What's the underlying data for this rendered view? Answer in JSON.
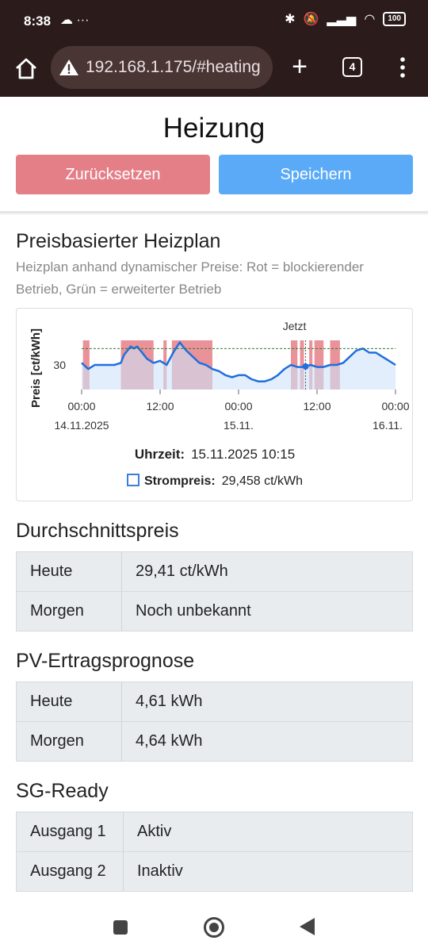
{
  "status_bar": {
    "time": "8:38",
    "left_icons": "☁ ···",
    "battery": "100"
  },
  "browser": {
    "url": "192.168.1.175/#heating",
    "tab_count": "4"
  },
  "page": {
    "title": "Heizung",
    "reset_label": "Zurücksetzen",
    "save_label": "Speichern"
  },
  "heizplan": {
    "title": "Preisbasierter Heizplan",
    "description": "Heizplan anhand dynamischer Preise: Rot = blockierender Betrieb, Grün = erweiterter Betrieb",
    "tooltip_time_label": "Uhrzeit:",
    "tooltip_time_value": "15.11.2025 10:15",
    "tooltip_series_label": "Strompreis:",
    "tooltip_series_value": "29,458 ct/kWh"
  },
  "chart_data": {
    "type": "line",
    "ylabel": "Preis [ct/kWh]",
    "y_ticks": [
      "30"
    ],
    "x_ticks": [
      {
        "time": "00:00",
        "date": "14.11.2025"
      },
      {
        "time": "12:00",
        "date": ""
      },
      {
        "time": "00:00",
        "date": "15.11."
      },
      {
        "time": "12:00",
        "date": ""
      },
      {
        "time": "00:00",
        "date": "16.11."
      }
    ],
    "now_label": "Jetzt",
    "now_hours": 34.25,
    "x_range_hours": [
      0,
      48
    ],
    "ylim": [
      24,
      36
    ],
    "reference_line": 34.0,
    "series": [
      {
        "name": "Strompreis",
        "color": "#1f6fde",
        "x_hours": [
          0,
          1,
          2,
          3,
          4,
          5,
          6,
          6.5,
          7,
          7.5,
          8,
          8.5,
          9,
          10,
          11,
          12,
          13,
          14,
          15,
          15.5,
          16,
          17,
          18,
          19,
          20,
          21,
          22,
          23,
          24,
          25,
          26,
          27,
          28,
          29,
          30,
          31,
          32,
          33,
          34,
          35,
          36,
          37,
          38,
          39,
          40,
          41,
          42,
          43,
          44,
          45,
          46,
          47,
          48
        ],
        "values": [
          30.5,
          29.0,
          30.0,
          30.0,
          30.0,
          30.0,
          30.5,
          32.5,
          33.5,
          34.5,
          34.0,
          34.5,
          33.5,
          31.5,
          30.5,
          31.0,
          30.0,
          33.0,
          35.5,
          34.5,
          33.5,
          32.0,
          30.5,
          30.0,
          29.0,
          28.5,
          27.5,
          27.0,
          27.5,
          27.5,
          26.5,
          26.0,
          26.0,
          26.5,
          27.5,
          29.0,
          30.0,
          29.5,
          29.5,
          30.0,
          29.5,
          29.5,
          30.0,
          30.0,
          30.5,
          32.0,
          33.5,
          34.0,
          33.0,
          33.0,
          32.0,
          31.0,
          30.0
        ]
      }
    ],
    "blocking_periods_hours": [
      [
        0.2,
        1.2
      ],
      [
        6.0,
        11.0
      ],
      [
        12.5,
        13.0
      ],
      [
        13.8,
        20.0
      ],
      [
        32.0,
        33.0
      ],
      [
        33.4,
        34.0
      ],
      [
        34.8,
        35.3
      ],
      [
        35.6,
        37.0
      ],
      [
        38.0,
        39.5
      ]
    ],
    "blocking_color": "#e57f87",
    "extended_color": "#a8d99a"
  },
  "durchschnitt": {
    "title": "Durchschnittspreis",
    "rows": [
      {
        "key": "Heute",
        "value": "29,41 ct/kWh"
      },
      {
        "key": "Morgen",
        "value": "Noch unbekannt"
      }
    ]
  },
  "pv": {
    "title": "PV-Ertragsprognose",
    "rows": [
      {
        "key": "Heute",
        "value": "4,61 kWh"
      },
      {
        "key": "Morgen",
        "value": "4,64 kWh"
      }
    ]
  },
  "sg": {
    "title": "SG-Ready",
    "rows": [
      {
        "key": "Ausgang 1",
        "value": "Aktiv"
      },
      {
        "key": "Ausgang 2",
        "value": "Inaktiv"
      }
    ]
  }
}
